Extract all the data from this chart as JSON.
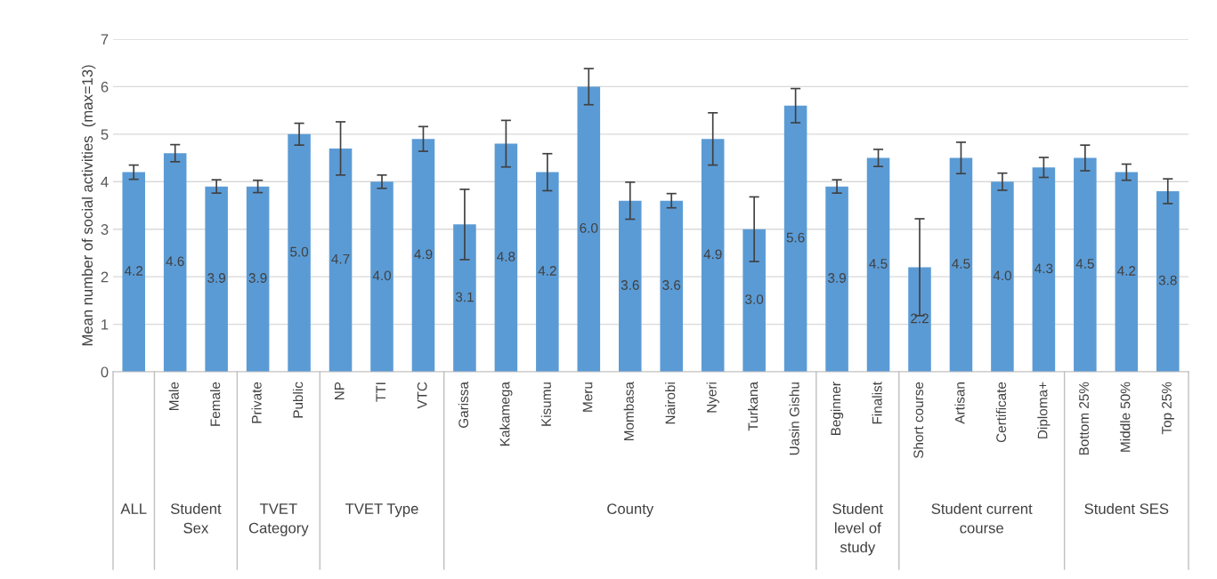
{
  "chart_data": {
    "type": "bar",
    "ylabel": "Mean number of social activities  (max=13)",
    "categories": [
      null,
      "Male",
      "Female",
      "Private",
      "Public",
      "NP",
      "TTI",
      "VTC",
      "Garissa",
      "Kakamega",
      "Kisumu",
      "Meru",
      "Mombasa",
      "Nairobi",
      "Nyeri",
      "Turkana",
      "Uasin Gishu",
      "Beginner",
      "Finalist",
      "Short course",
      "Artisan",
      "Certificate",
      "Diploma+",
      "Bottom 25%",
      "Middle 50%",
      "Top 25%"
    ],
    "values": [
      4.2,
      4.6,
      3.9,
      3.9,
      5.0,
      4.7,
      4.0,
      4.9,
      3.1,
      4.8,
      4.2,
      6.0,
      3.6,
      3.6,
      4.9,
      3.0,
      5.6,
      3.9,
      4.5,
      2.2,
      4.5,
      4.0,
      4.3,
      4.5,
      4.2,
      3.8
    ],
    "errors": [
      0.15,
      0.18,
      0.14,
      0.13,
      0.23,
      0.56,
      0.14,
      0.26,
      0.74,
      0.49,
      0.39,
      0.38,
      0.39,
      0.15,
      0.55,
      0.68,
      0.36,
      0.14,
      0.18,
      1.02,
      0.33,
      0.18,
      0.21,
      0.27,
      0.17,
      0.26
    ],
    "value_labels": [
      "4.2",
      "4.6",
      "3.9",
      "3.9",
      "5.0",
      "4.7",
      "4.0",
      "4.9",
      "3.1",
      "4.8",
      "4.2",
      "6.0",
      "3.6",
      "3.6",
      "4.9",
      "3.0",
      "5.6",
      "3.9",
      "4.5",
      "2.2",
      "4.5",
      "4.0",
      "4.3",
      "4.5",
      "4.2",
      "3.8"
    ],
    "color": "#5b9bd5",
    "grid": "y",
    "legend": false,
    "ylim": [
      0,
      7
    ],
    "yticks": [
      0,
      1,
      2,
      3,
      4,
      5,
      6,
      7
    ],
    "annotations": [
      "ALL",
      "Student\nSex",
      "TVET\nCategory",
      "TVET Type",
      "County",
      "Student\nlevel of\nstudy",
      "Student current\ncourse",
      "Student SES"
    ]
  }
}
